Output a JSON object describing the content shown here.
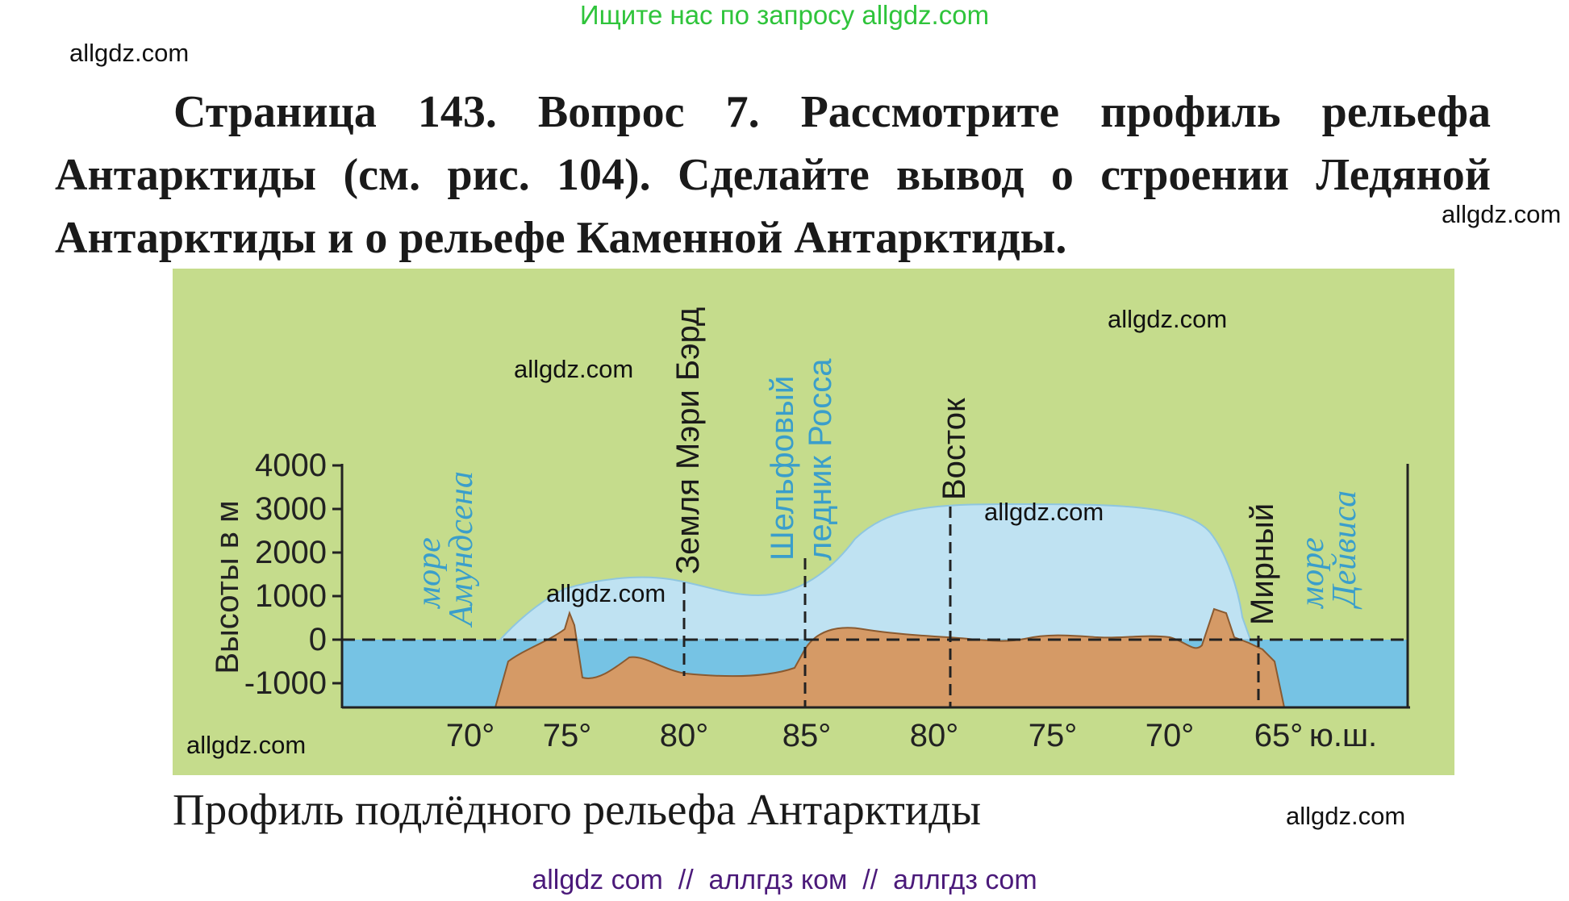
{
  "banner": "Ищите нас по запросу allgdz.com",
  "watermarks": [
    "allgdz.com",
    "allgdz.com",
    "allgdz.com",
    "allgdz.com",
    "allgdz.com",
    "allgdz.com",
    "allgdz.com",
    "allgdz.com"
  ],
  "question": "Страница 143. Вопрос 7. Рассмотрите профиль рельефа Антарктиды (см. рис. 104). Сделайте вывод о строении Ледяной Антарктиды и о рельефе Каменной Антарктиды.",
  "figure": {
    "y_axis_label": "Высоты в м",
    "y_ticks": [
      "4000",
      "3000",
      "2000",
      "1000",
      "0",
      "-1000"
    ],
    "x_ticks": [
      "70°",
      "75°",
      "80°",
      "85°",
      "80°",
      "75°",
      "70°",
      "65°"
    ],
    "x_unit": "ю.ш.",
    "labels": {
      "amundsen_sea": [
        "море",
        "Амундсена"
      ],
      "marie_byrd": "Земля Мэри Бэрд",
      "ross": [
        "Шельфовый",
        "ледник Росса"
      ],
      "vostok": "Восток",
      "mirny": "Мирный",
      "davis_sea": [
        "море",
        "Дейвиса"
      ]
    },
    "colors": {
      "background": "#c5dc8c",
      "sea": "#76c3e4",
      "ice": "#bfe2f2",
      "rock": "#d59a66"
    }
  },
  "caption": "Профиль подлёдного рельефа Антарктиды",
  "bottom_links": "allgdz com  //  аллгдз ком  //  аллгдз com"
}
